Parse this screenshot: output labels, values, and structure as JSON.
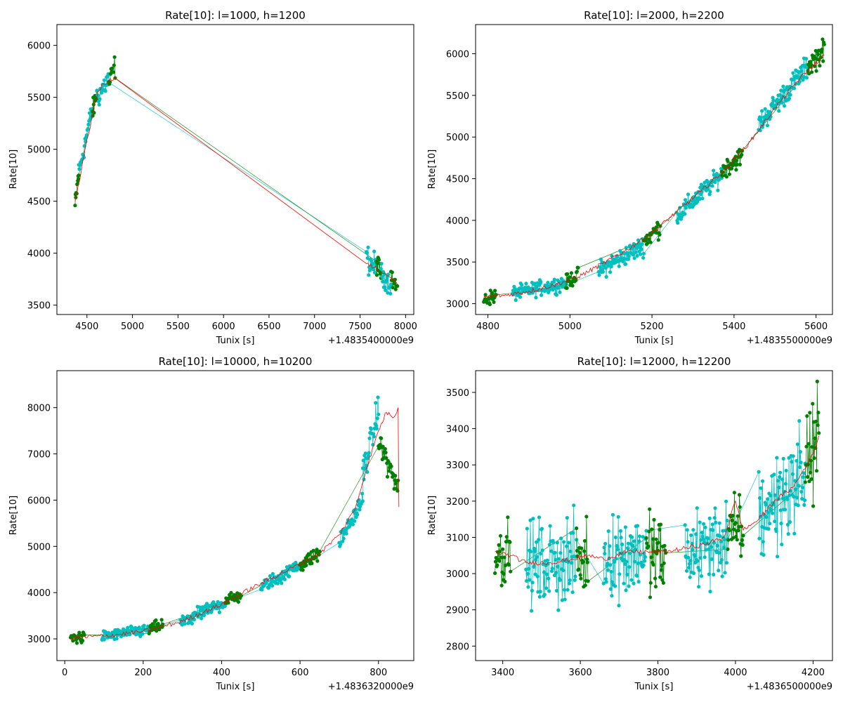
{
  "colors": {
    "measured_a": "#00bfbf",
    "measured_b": "#008000",
    "model": "#ff0000"
  },
  "chart_data": [
    {
      "type": "line",
      "title": "Rate[10]: l=1000, h=1200",
      "xlabel": "Tunix [s]",
      "ylabel": "Rate[10]",
      "x_offset_label": "+1.4835400000e9",
      "xlim": [
        4170,
        8090
      ],
      "ylim": [
        3410,
        6200
      ],
      "xticks": [
        4500,
        5000,
        5500,
        6000,
        6500,
        7000,
        7500,
        8000
      ],
      "yticks": [
        3500,
        4000,
        4500,
        5000,
        5500,
        6000
      ],
      "grid": false,
      "segments": [
        {
          "x0": 4370,
          "x1": 4410,
          "y0": 4450,
          "y1": 4780,
          "color": "measured_b",
          "noise": 150
        },
        {
          "x0": 4410,
          "x1": 4560,
          "y0": 4780,
          "y1": 5400,
          "color": "measured_a",
          "noise": 150
        },
        {
          "x0": 4560,
          "x1": 4610,
          "y0": 5350,
          "y1": 5550,
          "color": "measured_b",
          "noise": 150
        },
        {
          "x0": 4610,
          "x1": 4740,
          "y0": 5500,
          "y1": 5680,
          "color": "measured_a",
          "noise": 180
        },
        {
          "x0": 4740,
          "x1": 4810,
          "y0": 5620,
          "y1": 5800,
          "color": "measured_b",
          "noise": 180
        },
        {
          "x0": 7570,
          "x1": 7680,
          "y0": 3950,
          "y1": 3850,
          "color": "measured_a",
          "noise": 200
        },
        {
          "x0": 7680,
          "x1": 7730,
          "y0": 3900,
          "y1": 3820,
          "color": "measured_b",
          "noise": 150
        },
        {
          "x0": 7730,
          "x1": 7840,
          "y0": 3800,
          "y1": 3700,
          "color": "measured_a",
          "noise": 150
        },
        {
          "x0": 7840,
          "x1": 7910,
          "y0": 3780,
          "y1": 3650,
          "color": "measured_b",
          "noise": 150
        }
      ],
      "model": [
        [
          4370,
          4500
        ],
        [
          4420,
          4700
        ],
        [
          4470,
          4950
        ],
        [
          4520,
          5150
        ],
        [
          4570,
          5380
        ],
        [
          4620,
          5550
        ],
        [
          4680,
          5630
        ],
        [
          4740,
          5660
        ],
        [
          4800,
          5690
        ],
        [
          7570,
          3900
        ],
        [
          7650,
          3860
        ],
        [
          7730,
          3830
        ],
        [
          7800,
          3780
        ],
        [
          7860,
          3740
        ],
        [
          7910,
          3700
        ]
      ]
    },
    {
      "type": "line",
      "title": "Rate[10]: l=2000, h=2200",
      "xlabel": "Tunix [s]",
      "ylabel": "Rate[10]",
      "x_offset_label": "+1.4835500000e9",
      "xlim": [
        4770,
        5640
      ],
      "ylim": [
        2870,
        6350
      ],
      "xticks": [
        4800,
        5000,
        5200,
        5400,
        5600
      ],
      "yticks": [
        3000,
        3500,
        4000,
        4500,
        5000,
        5500,
        6000
      ],
      "grid": false,
      "segments": [
        {
          "x0": 4790,
          "x1": 4820,
          "y0": 3050,
          "y1": 3100,
          "color": "measured_b",
          "noise": 130
        },
        {
          "x0": 4860,
          "x1": 4990,
          "y0": 3120,
          "y1": 3250,
          "color": "measured_a",
          "noise": 130
        },
        {
          "x0": 4990,
          "x1": 5020,
          "y0": 3250,
          "y1": 3350,
          "color": "measured_b",
          "noise": 130
        },
        {
          "x0": 5070,
          "x1": 5180,
          "y0": 3400,
          "y1": 3700,
          "color": "measured_a",
          "noise": 170
        },
        {
          "x0": 5180,
          "x1": 5220,
          "y0": 3750,
          "y1": 3920,
          "color": "measured_b",
          "noise": 170
        },
        {
          "x0": 5260,
          "x1": 5370,
          "y0": 4050,
          "y1": 4550,
          "color": "measured_a",
          "noise": 170
        },
        {
          "x0": 5370,
          "x1": 5420,
          "y0": 4600,
          "y1": 4780,
          "color": "measured_b",
          "noise": 170
        },
        {
          "x0": 5460,
          "x1": 5580,
          "y0": 5150,
          "y1": 5850,
          "color": "measured_a",
          "noise": 200
        },
        {
          "x0": 5580,
          "x1": 5620,
          "y0": 5850,
          "y1": 6050,
          "color": "measured_b",
          "noise": 200
        }
      ],
      "model": [
        [
          4790,
          3080
        ],
        [
          4840,
          3100
        ],
        [
          4900,
          3150
        ],
        [
          4960,
          3220
        ],
        [
          5020,
          3320
        ],
        [
          5080,
          3480
        ],
        [
          5140,
          3650
        ],
        [
          5200,
          3850
        ],
        [
          5260,
          4100
        ],
        [
          5320,
          4350
        ],
        [
          5380,
          4620
        ],
        [
          5440,
          4950
        ],
        [
          5500,
          5350
        ],
        [
          5560,
          5700
        ],
        [
          5620,
          5980
        ]
      ]
    },
    {
      "type": "line",
      "title": "Rate[10]: l=10000, h=10200",
      "xlabel": "Tunix [s]",
      "ylabel": "Rate[10]",
      "x_offset_label": "+1.4836320000e9",
      "xlim": [
        -20,
        890
      ],
      "ylim": [
        2530,
        8800
      ],
      "xticks": [
        0,
        200,
        400,
        600,
        800
      ],
      "yticks": [
        3000,
        4000,
        5000,
        6000,
        7000,
        8000
      ],
      "grid": false,
      "segments": [
        {
          "x0": 15,
          "x1": 50,
          "y0": 3020,
          "y1": 3050,
          "color": "measured_b",
          "noise": 180
        },
        {
          "x0": 95,
          "x1": 215,
          "y0": 3050,
          "y1": 3200,
          "color": "measured_a",
          "noise": 180
        },
        {
          "x0": 215,
          "x1": 250,
          "y0": 3200,
          "y1": 3300,
          "color": "measured_b",
          "noise": 180
        },
        {
          "x0": 295,
          "x1": 410,
          "y0": 3350,
          "y1": 3800,
          "color": "measured_a",
          "noise": 220
        },
        {
          "x0": 410,
          "x1": 450,
          "y0": 3830,
          "y1": 3950,
          "color": "measured_b",
          "noise": 180
        },
        {
          "x0": 500,
          "x1": 600,
          "y0": 4100,
          "y1": 4600,
          "color": "measured_a",
          "noise": 220
        },
        {
          "x0": 600,
          "x1": 650,
          "y0": 4600,
          "y1": 4850,
          "color": "measured_b",
          "noise": 200
        },
        {
          "x0": 700,
          "x1": 760,
          "y0": 5100,
          "y1": 6000,
          "color": "measured_a",
          "noise": 250
        },
        {
          "x0": 760,
          "x1": 800,
          "y0": 6600,
          "y1": 7900,
          "color": "measured_a",
          "noise": 500
        },
        {
          "x0": 800,
          "x1": 850,
          "y0": 7300,
          "y1": 6250,
          "color": "measured_b",
          "noise": 350
        }
      ],
      "model": [
        [
          15,
          3030
        ],
        [
          100,
          3060
        ],
        [
          200,
          3160
        ],
        [
          300,
          3380
        ],
        [
          400,
          3750
        ],
        [
          500,
          4200
        ],
        [
          600,
          4620
        ],
        [
          650,
          4850
        ],
        [
          700,
          5250
        ],
        [
          740,
          5800
        ],
        [
          770,
          6700
        ],
        [
          800,
          7500
        ],
        [
          820,
          7900
        ],
        [
          840,
          7800
        ],
        [
          850,
          8000
        ],
        [
          852,
          5850
        ]
      ]
    },
    {
      "type": "line",
      "title": "Rate[10]: l=12000, h=12200",
      "xlabel": "Tunix [s]",
      "ylabel": "Rate[10]",
      "x_offset_label": "+1.4836500000e9",
      "xlim": [
        3330,
        4250
      ],
      "ylim": [
        2760,
        3560
      ],
      "xticks": [
        3400,
        3600,
        3800,
        4000,
        4200
      ],
      "yticks": [
        2800,
        2900,
        3000,
        3100,
        3200,
        3300,
        3400,
        3500
      ],
      "grid": false,
      "segments": [
        {
          "x0": 3380,
          "x1": 3420,
          "y0": 3050,
          "y1": 3060,
          "color": "measured_b",
          "noise": 120
        },
        {
          "x0": 3460,
          "x1": 3590,
          "y0": 3020,
          "y1": 3040,
          "color": "measured_a",
          "noise": 170
        },
        {
          "x0": 3590,
          "x1": 3620,
          "y0": 3040,
          "y1": 3030,
          "color": "measured_b",
          "noise": 140
        },
        {
          "x0": 3660,
          "x1": 3770,
          "y0": 3050,
          "y1": 3060,
          "color": "measured_a",
          "noise": 170
        },
        {
          "x0": 3770,
          "x1": 3820,
          "y0": 3060,
          "y1": 3040,
          "color": "measured_b",
          "noise": 170
        },
        {
          "x0": 3870,
          "x1": 3980,
          "y0": 3050,
          "y1": 3100,
          "color": "measured_a",
          "noise": 170
        },
        {
          "x0": 3980,
          "x1": 4020,
          "y0": 3100,
          "y1": 3130,
          "color": "measured_b",
          "noise": 150
        },
        {
          "x0": 4060,
          "x1": 4180,
          "y0": 3150,
          "y1": 3280,
          "color": "measured_a",
          "noise": 200
        },
        {
          "x0": 4180,
          "x1": 4215,
          "y0": 3300,
          "y1": 3380,
          "color": "measured_b",
          "noise": 200
        }
      ],
      "model": [
        [
          3380,
          3060
        ],
        [
          3420,
          3050
        ],
        [
          3460,
          3030
        ],
        [
          3520,
          3030
        ],
        [
          3580,
          3040
        ],
        [
          3620,
          3050
        ],
        [
          3660,
          3040
        ],
        [
          3720,
          3060
        ],
        [
          3780,
          3060
        ],
        [
          3820,
          3060
        ],
        [
          3870,
          3070
        ],
        [
          3920,
          3080
        ],
        [
          3970,
          3100
        ],
        [
          4000,
          3200
        ],
        [
          4020,
          3120
        ],
        [
          4060,
          3150
        ],
        [
          4100,
          3200
        ],
        [
          4150,
          3240
        ],
        [
          4200,
          3330
        ],
        [
          4215,
          3380
        ]
      ]
    }
  ]
}
